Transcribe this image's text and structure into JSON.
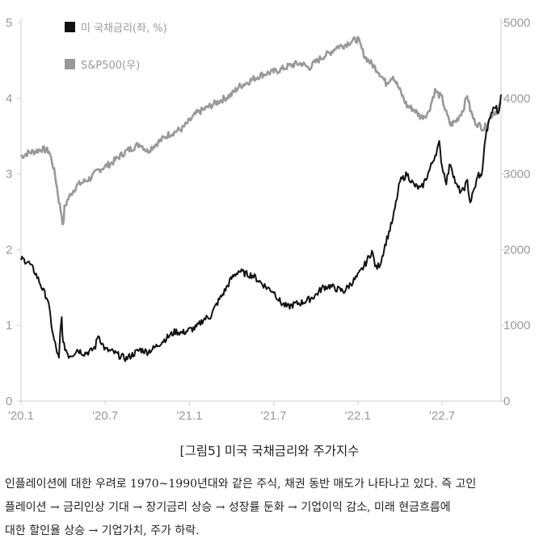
{
  "chart_data": {
    "type": "line",
    "title": "",
    "xlabel": "",
    "ylabel_left": "",
    "ylabel_right": "",
    "x_tick_labels": [
      "'20.1",
      "'20.7",
      "'21.1",
      "'21.7",
      "'22.1",
      "'22.7"
    ],
    "x_tick_positions": [
      0,
      6,
      12,
      18,
      24,
      30
    ],
    "x_unit": "months since 2020-01",
    "xlim": [
      0,
      34.2
    ],
    "y_left": {
      "ticks": [
        "0",
        "1",
        "2",
        "3",
        "4",
        "5"
      ],
      "lim": [
        0,
        5
      ]
    },
    "y_right": {
      "ticks": [
        "0",
        "1000",
        "2000",
        "3000",
        "4000",
        "5000"
      ],
      "lim": [
        0,
        5000
      ]
    },
    "grid": false,
    "legend_position": "top-left",
    "series": [
      {
        "name": "미 국채금리(좌, %)",
        "axis": "left",
        "color": "#111111",
        "points": [
          [
            0,
            1.88
          ],
          [
            0.5,
            1.84
          ],
          [
            1,
            1.7
          ],
          [
            1.3,
            1.58
          ],
          [
            1.6,
            1.45
          ],
          [
            1.9,
            1.35
          ],
          [
            2.1,
            1.1
          ],
          [
            2.3,
            0.85
          ],
          [
            2.5,
            0.7
          ],
          [
            2.7,
            0.55
          ],
          [
            2.8,
            0.9
          ],
          [
            2.9,
            1.1
          ],
          [
            3.0,
            0.75
          ],
          [
            3.2,
            0.68
          ],
          [
            3.4,
            0.6
          ],
          [
            3.7,
            0.62
          ],
          [
            4,
            0.68
          ],
          [
            4.5,
            0.63
          ],
          [
            5,
            0.66
          ],
          [
            5.3,
            0.72
          ],
          [
            5.5,
            0.88
          ],
          [
            5.8,
            0.75
          ],
          [
            6,
            0.68
          ],
          [
            6.5,
            0.65
          ],
          [
            7,
            0.6
          ],
          [
            7.5,
            0.56
          ],
          [
            8,
            0.62
          ],
          [
            8.5,
            0.68
          ],
          [
            9,
            0.65
          ],
          [
            9.5,
            0.7
          ],
          [
            10,
            0.78
          ],
          [
            10.5,
            0.85
          ],
          [
            11,
            0.92
          ],
          [
            11.5,
            0.9
          ],
          [
            12,
            0.94
          ],
          [
            12.5,
            0.97
          ],
          [
            13,
            1.08
          ],
          [
            13.5,
            1.12
          ],
          [
            14,
            1.3
          ],
          [
            14.5,
            1.45
          ],
          [
            15,
            1.62
          ],
          [
            15.5,
            1.72
          ],
          [
            16,
            1.68
          ],
          [
            16.5,
            1.66
          ],
          [
            17,
            1.58
          ],
          [
            17.5,
            1.5
          ],
          [
            18,
            1.45
          ],
          [
            18.5,
            1.3
          ],
          [
            19,
            1.24
          ],
          [
            19.5,
            1.28
          ],
          [
            20,
            1.3
          ],
          [
            20.5,
            1.34
          ],
          [
            21,
            1.4
          ],
          [
            21.5,
            1.5
          ],
          [
            22,
            1.52
          ],
          [
            22.5,
            1.48
          ],
          [
            23,
            1.45
          ],
          [
            23.5,
            1.55
          ],
          [
            24,
            1.65
          ],
          [
            24.5,
            1.8
          ],
          [
            25,
            1.98
          ],
          [
            25.3,
            1.75
          ],
          [
            25.6,
            1.82
          ],
          [
            26,
            2.1
          ],
          [
            26.5,
            2.4
          ],
          [
            27,
            2.9
          ],
          [
            27.5,
            3.0
          ],
          [
            28,
            2.85
          ],
          [
            28.5,
            2.8
          ],
          [
            29,
            3.0
          ],
          [
            29.5,
            3.25
          ],
          [
            29.8,
            3.4
          ],
          [
            30,
            3.1
          ],
          [
            30.3,
            2.9
          ],
          [
            30.6,
            3.15
          ],
          [
            31,
            2.85
          ],
          [
            31.4,
            2.75
          ],
          [
            31.8,
            2.9
          ],
          [
            32,
            2.62
          ],
          [
            32.3,
            2.8
          ],
          [
            32.6,
            3.0
          ],
          [
            32.8,
            2.95
          ],
          [
            33.1,
            3.5
          ],
          [
            33.5,
            3.8
          ],
          [
            33.8,
            3.9
          ],
          [
            34,
            3.8
          ],
          [
            34.2,
            4.05
          ]
        ]
      },
      {
        "name": "S&P500(우)",
        "axis": "right",
        "color": "#999999",
        "points": [
          [
            0,
            3230
          ],
          [
            0.5,
            3280
          ],
          [
            1,
            3300
          ],
          [
            1.5,
            3330
          ],
          [
            2,
            3300
          ],
          [
            2.3,
            3100
          ],
          [
            2.5,
            2900
          ],
          [
            2.7,
            2650
          ],
          [
            2.9,
            2450
          ],
          [
            3.0,
            2300
          ],
          [
            3.1,
            2550
          ],
          [
            3.3,
            2650
          ],
          [
            3.6,
            2750
          ],
          [
            4,
            2850
          ],
          [
            4.5,
            2900
          ],
          [
            5,
            2950
          ],
          [
            5.5,
            3050
          ],
          [
            6,
            3100
          ],
          [
            6.5,
            3150
          ],
          [
            7,
            3230
          ],
          [
            7.5,
            3300
          ],
          [
            8,
            3350
          ],
          [
            8.5,
            3400
          ],
          [
            9,
            3300
          ],
          [
            9.5,
            3380
          ],
          [
            10,
            3450
          ],
          [
            10.5,
            3520
          ],
          [
            11,
            3560
          ],
          [
            11.5,
            3600
          ],
          [
            12,
            3700
          ],
          [
            12.5,
            3800
          ],
          [
            13,
            3850
          ],
          [
            13.5,
            3900
          ],
          [
            14,
            3950
          ],
          [
            14.5,
            4000
          ],
          [
            15,
            4050
          ],
          [
            15.5,
            4150
          ],
          [
            16,
            4200
          ],
          [
            16.5,
            4250
          ],
          [
            17,
            4300
          ],
          [
            17.5,
            4330
          ],
          [
            18,
            4350
          ],
          [
            18.5,
            4380
          ],
          [
            19,
            4420
          ],
          [
            19.5,
            4450
          ],
          [
            20,
            4460
          ],
          [
            20.5,
            4400
          ],
          [
            21,
            4480
          ],
          [
            21.5,
            4550
          ],
          [
            22,
            4600
          ],
          [
            22.5,
            4680
          ],
          [
            23,
            4700
          ],
          [
            23.5,
            4750
          ],
          [
            24,
            4780
          ],
          [
            24.5,
            4550
          ],
          [
            25,
            4450
          ],
          [
            25.5,
            4350
          ],
          [
            26,
            4200
          ],
          [
            26.5,
            4300
          ],
          [
            27,
            4100
          ],
          [
            27.5,
            3900
          ],
          [
            28,
            3850
          ],
          [
            28.5,
            3750
          ],
          [
            29,
            3800
          ],
          [
            29.5,
            4100
          ],
          [
            30,
            4000
          ],
          [
            30.3,
            3800
          ],
          [
            30.6,
            3650
          ],
          [
            31,
            3700
          ],
          [
            31.5,
            3850
          ],
          [
            31.8,
            4050
          ],
          [
            32,
            3850
          ],
          [
            32.3,
            3700
          ],
          [
            32.6,
            3650
          ],
          [
            33,
            3600
          ],
          [
            33.3,
            3700
          ],
          [
            33.6,
            3800
          ],
          [
            34,
            3850
          ],
          [
            34.2,
            3920
          ]
        ]
      }
    ]
  },
  "caption": "[그림5] 미국 국채금리와 주가지수",
  "body": {
    "lines": [
      "인플레이션에 대한 우려로 1970~1990년대와 같은 주식, 채권 동반 매도가 나타나고 있다. 즉 고인",
      "플레이션 → 금리인상 기대 → 장기금리 상승 → 성장률 둔화 → 기업이익 감소, 미래 현금흐름에",
      "대한 할인율 상승 → 기업가치, 주가 하락."
    ]
  }
}
